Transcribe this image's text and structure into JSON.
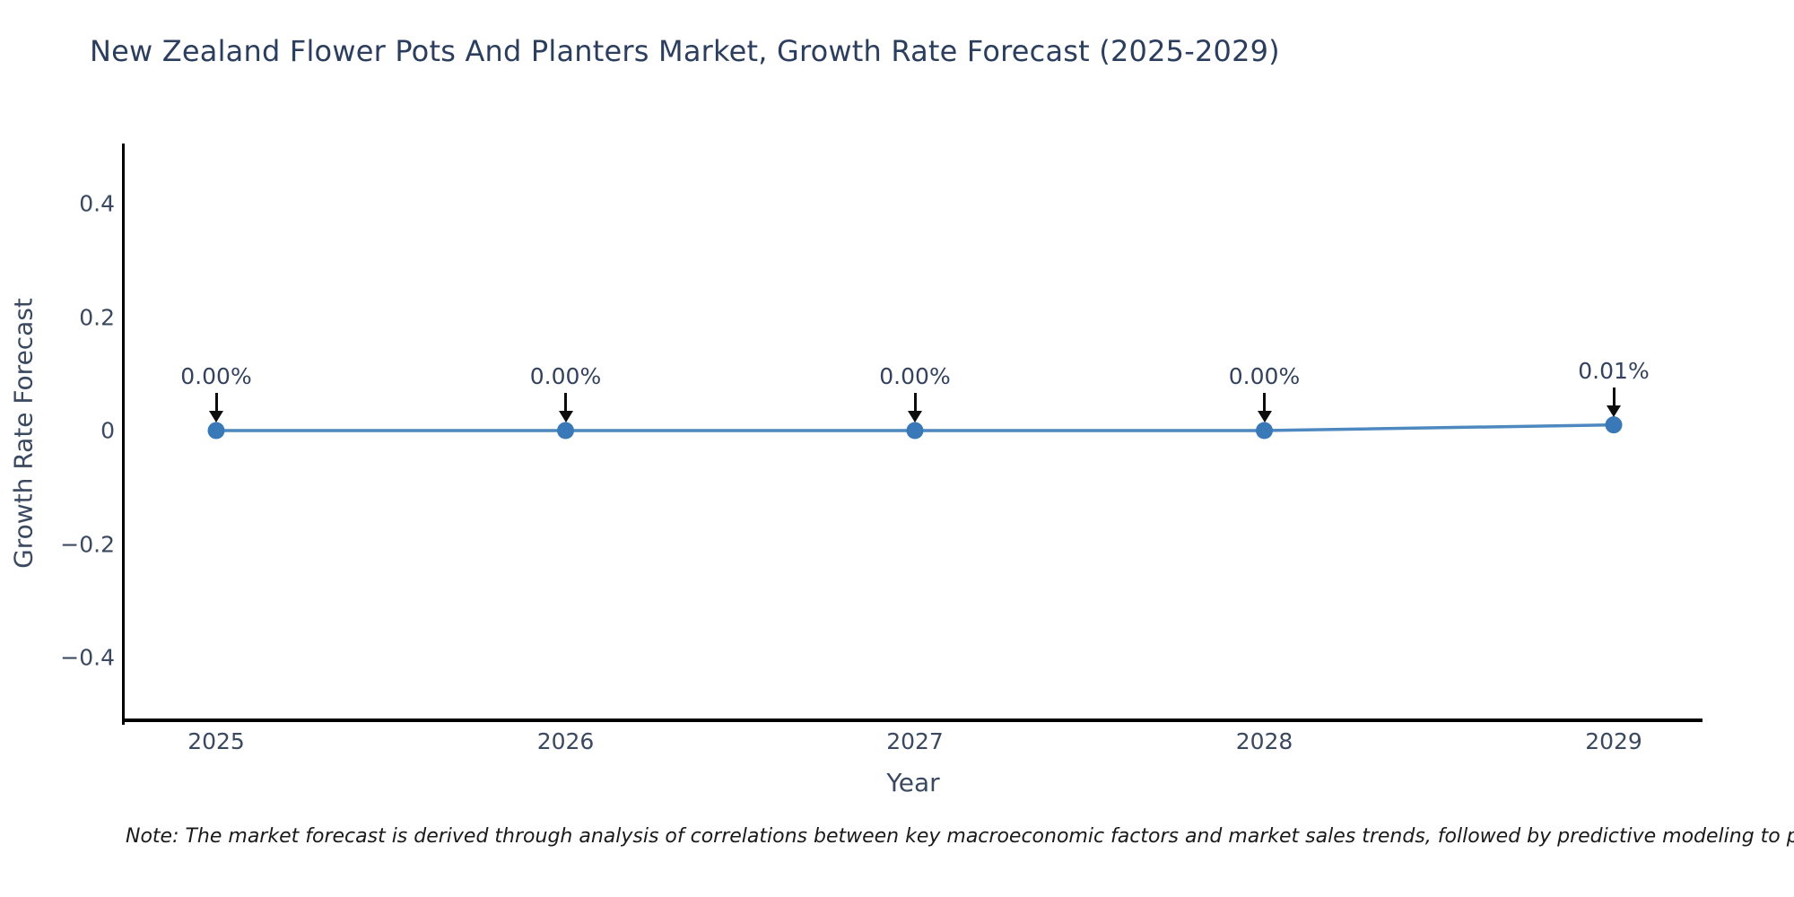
{
  "note": "Note: The market forecast is derived through analysis of correlations between key macroeconomic factors and market sales trends, followed by predictive modeling to project future sa",
  "chart_data": {
    "type": "line",
    "title": "New Zealand Flower Pots And Planters Market, Growth Rate Forecast (2025-2029)",
    "xlabel": "Year",
    "ylabel": "Growth Rate Forecast",
    "categories": [
      "2025",
      "2026",
      "2027",
      "2028",
      "2029"
    ],
    "series": [
      {
        "name": "Growth Rate Forecast",
        "values": [
          0.0,
          0.0,
          0.0,
          0.0,
          0.01
        ],
        "point_labels": [
          "0.00%",
          "0.00%",
          "0.00%",
          "0.00%",
          "0.01%"
        ]
      }
    ],
    "yticks": [
      {
        "value": 0.4,
        "label": "0.4"
      },
      {
        "value": 0.2,
        "label": "0.2"
      },
      {
        "value": 0,
        "label": "0"
      },
      {
        "value": -0.2,
        "label": "−0.2"
      },
      {
        "value": -0.4,
        "label": "−0.4"
      }
    ],
    "ylim": [
      -0.51,
      0.51
    ],
    "grid": false,
    "legend_position": "none",
    "colors": {
      "line": "#4d89c0",
      "marker": "#3a79b8",
      "annotation_arrow": "#0d0d0d",
      "text": "#3a4860",
      "title_text": "#2c3e5d",
      "axis": "#000000",
      "note_text": "#1a1a1a",
      "background": "#ffffff"
    }
  }
}
